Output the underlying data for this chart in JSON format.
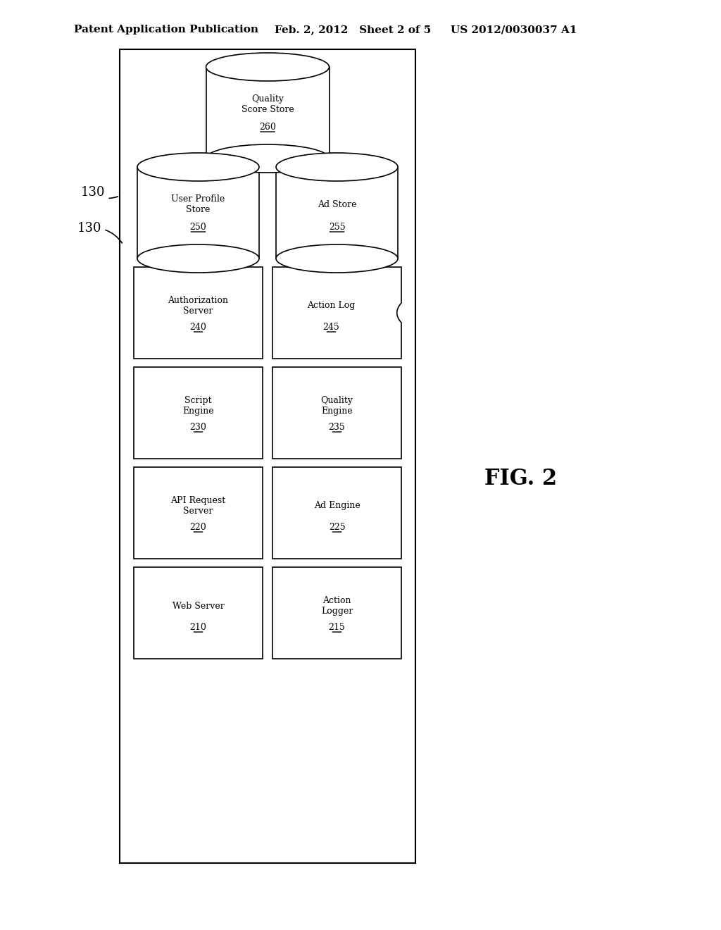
{
  "bg_color": "#ffffff",
  "header_left": "Patent Application Publication",
  "header_mid": "Feb. 2, 2012   Sheet 2 of 5",
  "header_right": "US 2012/0030037 A1",
  "fig_label": "FIG. 2",
  "outer_box_label": "130",
  "components": [
    {
      "type": "cylinder",
      "label": "Quality\nScore Store\n260",
      "col": "center",
      "row": 0
    },
    {
      "type": "cylinder",
      "label": "User Profile\nStore\n250",
      "col": "left",
      "row": 1
    },
    {
      "type": "cylinder",
      "label": "Ad Store\n255",
      "col": "right",
      "row": 1
    },
    {
      "type": "rect",
      "label": "Authorization\nServer\n240",
      "col": "left",
      "row": 2
    },
    {
      "type": "tape",
      "label": "Action Log\n245",
      "col": "right",
      "row": 2
    },
    {
      "type": "rect",
      "label": "Script\nEngine\n230",
      "col": "left",
      "row": 3
    },
    {
      "type": "rect",
      "label": "Quality\nEngine\n235",
      "col": "right",
      "row": 3
    },
    {
      "type": "rect",
      "label": "API Request\nServer\n220",
      "col": "left",
      "row": 4
    },
    {
      "type": "rect",
      "label": "Ad Engine\n225",
      "col": "right",
      "row": 4
    },
    {
      "type": "rect",
      "label": "Web Server\n210",
      "col": "left",
      "row": 5
    },
    {
      "type": "rect",
      "label": "Action\nLogger\n215",
      "col": "right",
      "row": 5
    }
  ]
}
